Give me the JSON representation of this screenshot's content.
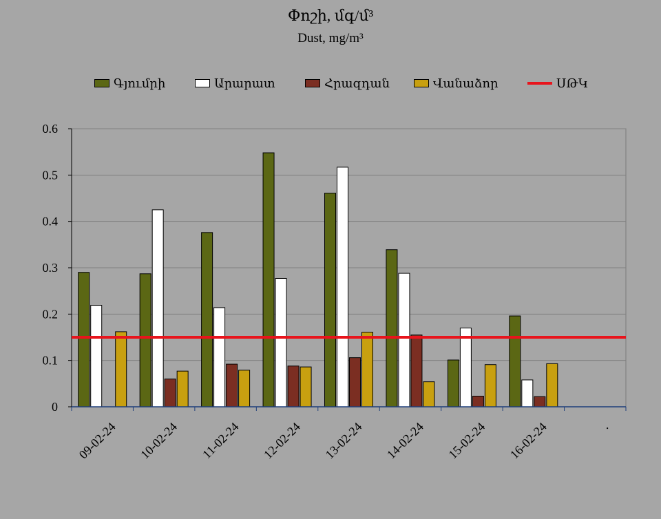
{
  "chart_data": {
    "type": "bar",
    "title": "Փոշի, մգ/մ³",
    "subtitle": "Dust, mg/m³",
    "categories": [
      "09-02-24",
      "10-02-24",
      "11-02-24",
      "12-02-24",
      "13-02-24",
      "14-02-24",
      "15-02-24",
      "16-02-24",
      "."
    ],
    "series": [
      {
        "name": "Գյումրի",
        "color": "#5b6714",
        "values": [
          0.29,
          0.287,
          0.376,
          0.548,
          0.461,
          0.339,
          0.101,
          0.196,
          null
        ]
      },
      {
        "name": "Արարատ",
        "color": "#ffffff",
        "values": [
          0.219,
          0.425,
          0.214,
          0.277,
          0.517,
          0.288,
          0.17,
          0.058,
          null
        ]
      },
      {
        "name": "Հրազդան",
        "color": "#7b2e22",
        "values": [
          null,
          0.06,
          0.092,
          0.088,
          0.106,
          0.155,
          0.023,
          0.022,
          null
        ]
      },
      {
        "name": "Վանաձոր",
        "color": "#c8a010",
        "values": [
          0.162,
          0.077,
          0.079,
          0.086,
          0.161,
          0.054,
          0.091,
          0.093,
          null
        ]
      }
    ],
    "reference_line": {
      "name": "ՍԹԿ",
      "value": 0.15,
      "color": "#e8141c"
    },
    "ylim": [
      0,
      0.6
    ],
    "yticks": [
      "0",
      "0.1",
      "0.2",
      "0.3",
      "0.4",
      "0.5",
      "0.6"
    ],
    "grid": true,
    "legend_position": "top"
  }
}
